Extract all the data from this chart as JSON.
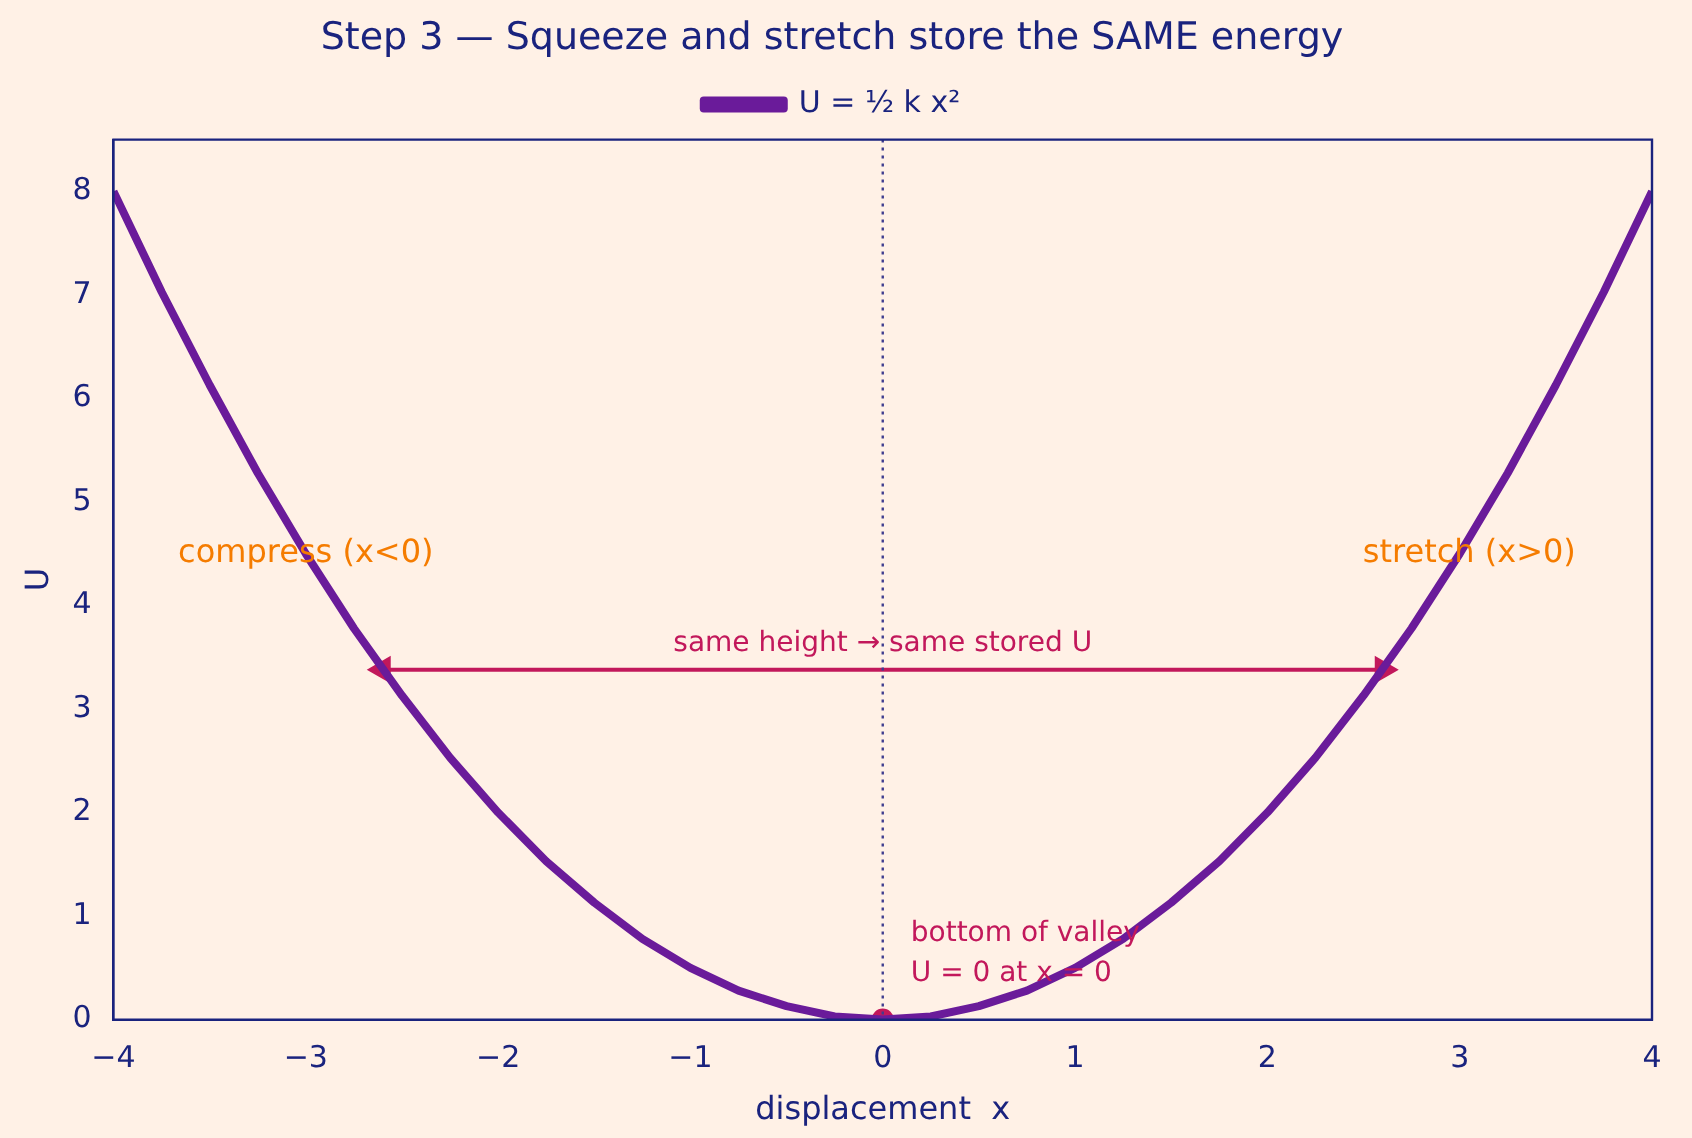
{
  "chart_data": {
    "type": "line",
    "title": "Step 3 — Squeeze and stretch store the SAME energy",
    "xlabel": "displacement  x",
    "ylabel": "U",
    "xlim": [
      -4,
      4
    ],
    "xticks": [
      {
        "value": -4,
        "label": "−4"
      },
      {
        "value": -3,
        "label": "−3"
      },
      {
        "value": -2,
        "label": "−2"
      },
      {
        "value": -1,
        "label": "−1"
      },
      0,
      1,
      2,
      3,
      4
    ],
    "ylim": [
      0,
      8.5
    ],
    "yticks": [
      0,
      1,
      2,
      3,
      4,
      5,
      6,
      7,
      8
    ],
    "grid": false,
    "legend": "top",
    "marker": "none",
    "line_style": "solid",
    "x": [
      -4,
      -3.75,
      -3.5,
      -3.25,
      -3,
      -2.75,
      -2.5,
      -2.25,
      -2,
      -1.75,
      -1.5,
      -1.25,
      -1,
      -0.75,
      -0.5,
      -0.25,
      0,
      0.25,
      0.5,
      0.75,
      1,
      1.25,
      1.5,
      1.75,
      2,
      2.25,
      2.5,
      2.75,
      3,
      3.25,
      3.5,
      3.75,
      4
    ],
    "series": [
      {
        "name": "U = ½ k x²",
        "color": "#6a1b9a",
        "values": [
          8,
          7.03,
          6.13,
          5.28,
          4.5,
          3.78,
          3.13,
          2.53,
          2,
          1.53,
          1.13,
          0.78,
          0.5,
          0.28,
          0.13,
          0.03,
          0,
          0.03,
          0.13,
          0.28,
          0.5,
          0.78,
          1.13,
          1.53,
          2,
          2.53,
          3.13,
          3.78,
          4.5,
          5.28,
          6.13,
          7.03,
          8
        ]
      },
      {
        "type": "line",
        "color": "#c2185b",
        "x": [
          -2.6,
          2.6
        ],
        "values": [
          3.38,
          3.38
        ],
        "marker": "triangle"
      },
      {
        "type": "scatter",
        "color": "#c2185b",
        "x": [
          0
        ],
        "values": [
          0
        ],
        "marker": "circle"
      }
    ],
    "ref_lines": [
      {
        "axis": "x",
        "value": 0,
        "color": "#3f3d8f",
        "line_style": "dotted"
      }
    ],
    "annotations": [
      {
        "text": "compress (x<0)",
        "x": -3.0,
        "y": 4.5
      },
      {
        "text": "stretch (x>0)",
        "x": 3.05,
        "y": 4.5
      },
      {
        "text": "same height → same stored U",
        "x": 0,
        "y": 3.38
      },
      {
        "text": "bottom of valley\nU = 0 at x = 0",
        "x": 0,
        "y": 0
      }
    ]
  }
}
